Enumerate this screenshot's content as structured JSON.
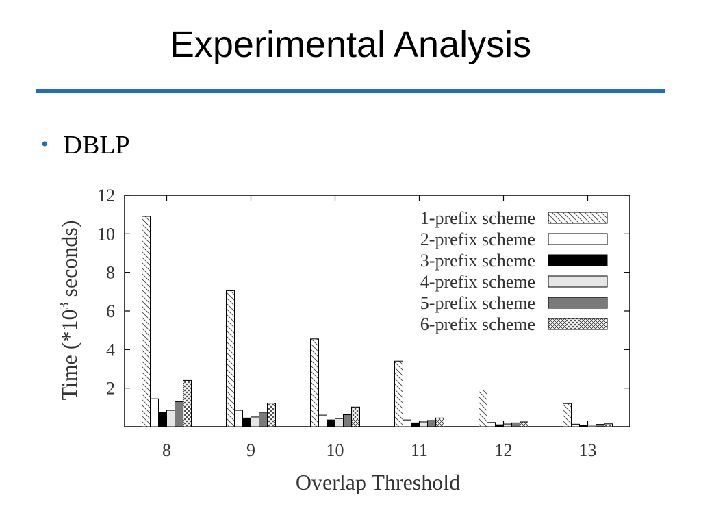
{
  "slide": {
    "title": "Experimental Analysis",
    "bullet": "DBLP",
    "rule_color": "#1f6fb5",
    "bullet_color": "#1f6fb5"
  },
  "chart_data": {
    "type": "bar",
    "xlabel": "Overlap Threshold",
    "ylabel_prefix": "Time (*10",
    "ylabel_sup": "3",
    "ylabel_suffix": " seconds)",
    "categories": [
      "8",
      "9",
      "10",
      "11",
      "12",
      "13"
    ],
    "ylim": [
      0,
      12
    ],
    "yticks": [
      "2",
      "4",
      "6",
      "8",
      "10",
      "12"
    ],
    "legend_position": "top-right",
    "series": [
      {
        "name": "1-prefix scheme",
        "pattern": "diagonal-hatch",
        "values": [
          10.9,
          7.05,
          4.55,
          3.4,
          1.9,
          1.2
        ]
      },
      {
        "name": "2-prefix scheme",
        "pattern": "white",
        "values": [
          1.45,
          0.85,
          0.6,
          0.35,
          0.22,
          0.13
        ]
      },
      {
        "name": "3-prefix scheme",
        "pattern": "black",
        "values": [
          0.75,
          0.45,
          0.35,
          0.2,
          0.1,
          0.06
        ]
      },
      {
        "name": "4-prefix scheme",
        "pattern": "light-gray",
        "values": [
          0.85,
          0.5,
          0.42,
          0.25,
          0.14,
          0.08
        ]
      },
      {
        "name": "5-prefix scheme",
        "pattern": "dark-gray",
        "values": [
          1.3,
          0.75,
          0.62,
          0.32,
          0.2,
          0.12
        ]
      },
      {
        "name": "6-prefix scheme",
        "pattern": "crosshatch",
        "values": [
          2.4,
          1.22,
          1.02,
          0.45,
          0.25,
          0.15
        ]
      }
    ]
  }
}
